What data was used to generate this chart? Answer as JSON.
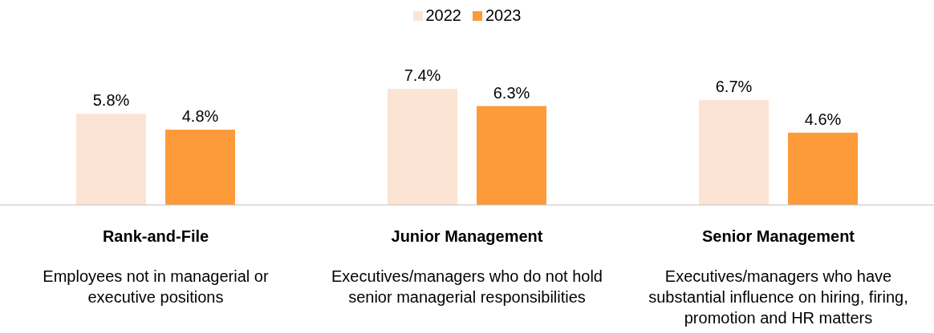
{
  "chart_data": {
    "type": "bar",
    "categories": [
      "Rank-and-File",
      "Junior Management",
      "Senior Management"
    ],
    "series": [
      {
        "name": "2022",
        "color": "#fce4d4",
        "values": [
          5.8,
          7.4,
          6.7
        ],
        "value_labels": [
          "5.8%",
          "7.4%",
          "6.7%"
        ]
      },
      {
        "name": "2023",
        "color": "#fd9a3a",
        "values": [
          4.8,
          6.3,
          4.6
        ],
        "value_labels": [
          "4.8%",
          "6.3%",
          "4.6%"
        ]
      }
    ],
    "annotations": [
      "Employees not in managerial or executive positions",
      "Executives/managers who do not hold senior managerial responsibilities",
      "Executives/managers who have substantial influence on hiring, firing, promotion and HR matters"
    ],
    "legend": "top",
    "grid": false
  }
}
